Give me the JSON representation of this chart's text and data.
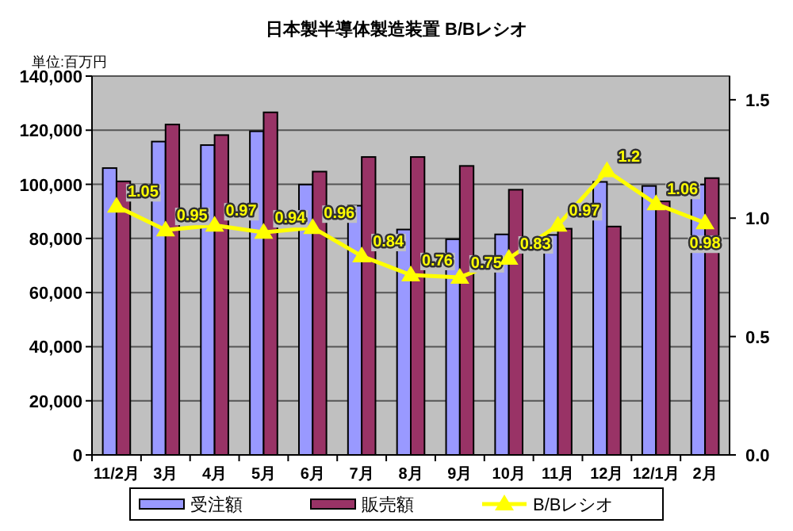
{
  "chart_data": {
    "type": "bar",
    "title": "日本製半導体製造装置 B/Bレシオ",
    "annotations": [
      "単位:百万円"
    ],
    "categories": [
      "11/2月",
      "3月",
      "4月",
      "5月",
      "6月",
      "7月",
      "8月",
      "9月",
      "10月",
      "11月",
      "12月",
      "12/1月",
      "2月"
    ],
    "series": [
      {
        "name": "受注額",
        "color": "#9999ff",
        "values": [
          106000,
          115800,
          114500,
          119600,
          99900,
          92100,
          83300,
          79700,
          81500,
          81300,
          100900,
          99400,
          99900
        ]
      },
      {
        "name": "販売額",
        "color": "#993366",
        "values": [
          101100,
          122100,
          118200,
          126600,
          104700,
          110100,
          110100,
          106800,
          98000,
          83600,
          84400,
          93700,
          102300
        ]
      },
      {
        "name": "B/Bレシオ",
        "type": "line",
        "axis": "y2",
        "color": "#ffff00",
        "marker": "triangle",
        "values": [
          1.05,
          0.95,
          0.97,
          0.94,
          0.96,
          0.84,
          0.76,
          0.75,
          0.83,
          0.97,
          1.2,
          1.06,
          0.98
        ],
        "value_labels": [
          "1.05",
          "0.95",
          "0.97",
          "0.94",
          "0.96",
          "0.84",
          "0.76",
          "0.75",
          "0.83",
          "0.97",
          "1.2",
          "1.06",
          "0.98"
        ]
      }
    ],
    "ylim": [
      0,
      140000
    ],
    "yticks": [
      {
        "value": 0,
        "label": "0"
      },
      {
        "value": 20000,
        "label": "20,000"
      },
      {
        "value": 40000,
        "label": "40,000"
      },
      {
        "value": 60000,
        "label": "60,000"
      },
      {
        "value": 80000,
        "label": "80,000"
      },
      {
        "value": 100000,
        "label": "100,000"
      },
      {
        "value": 120000,
        "label": "120,000"
      },
      {
        "value": 140000,
        "label": "140,000"
      }
    ],
    "y2lim": [
      0,
      1.6
    ],
    "y2ticks": [
      {
        "value": 0,
        "label": "0.0"
      },
      {
        "value": 0.5,
        "label": "0.5"
      },
      {
        "value": 1,
        "label": "1.0"
      },
      {
        "value": 1.5,
        "label": "1.5"
      }
    ],
    "grid": "y",
    "legend": "bottom"
  }
}
